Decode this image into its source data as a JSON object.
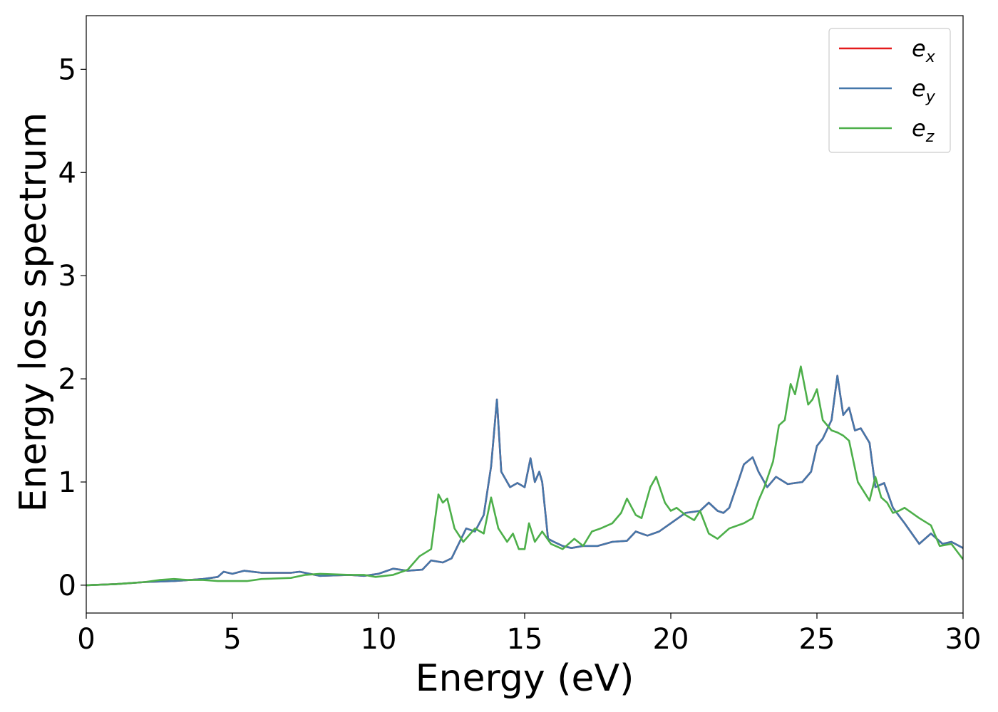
{
  "chart_data": {
    "type": "line",
    "title": "",
    "xlabel": "Energy (eV)",
    "ylabel": "Energy loss spectrum",
    "xlim": [
      0,
      30
    ],
    "ylim": [
      -0.27,
      5.52
    ],
    "xticks": [
      0,
      5,
      10,
      15,
      20,
      25,
      30
    ],
    "yticks": [
      0,
      1,
      2,
      3,
      4,
      5
    ],
    "grid": false,
    "legend_position": "top-right",
    "series": [
      {
        "name": "e",
        "subscript": "x",
        "color": "#e41a1c",
        "x": [
          0,
          1,
          2,
          3,
          4,
          4.5,
          4.7,
          5,
          5.4,
          6,
          7,
          7.3,
          8,
          9,
          9.5,
          10,
          10.5,
          11,
          11.5,
          11.8,
          12.2,
          12.5,
          13,
          13.3,
          13.6,
          13.85,
          14.05,
          14.2,
          14.5,
          14.75,
          15,
          15.2,
          15.35,
          15.5,
          15.6,
          15.8,
          16,
          16.3,
          16.6,
          17,
          17.5,
          18,
          18.5,
          18.8,
          19.2,
          19.6,
          20,
          20.5,
          21,
          21.3,
          21.6,
          21.8,
          22,
          22.3,
          22.5,
          22.8,
          23,
          23.3,
          23.6,
          24,
          24.5,
          24.8,
          25,
          25.2,
          25.5,
          25.7,
          25.9,
          26.1,
          26.3,
          26.5,
          26.8,
          27,
          27.3,
          27.6,
          28,
          28.5,
          28.9,
          29.3,
          29.6,
          30
        ],
        "y": [
          0,
          0.01,
          0.03,
          0.04,
          0.06,
          0.08,
          0.13,
          0.11,
          0.14,
          0.12,
          0.12,
          0.13,
          0.09,
          0.1,
          0.09,
          0.11,
          0.16,
          0.14,
          0.15,
          0.24,
          0.22,
          0.26,
          0.55,
          0.52,
          0.68,
          1.15,
          1.8,
          1.1,
          0.95,
          0.99,
          0.95,
          1.23,
          1.0,
          1.1,
          1.0,
          0.45,
          0.42,
          0.38,
          0.36,
          0.38,
          0.38,
          0.42,
          0.43,
          0.52,
          0.48,
          0.52,
          0.6,
          0.7,
          0.72,
          0.8,
          0.72,
          0.7,
          0.75,
          1.0,
          1.17,
          1.24,
          1.1,
          0.95,
          1.05,
          0.98,
          1.0,
          1.1,
          1.35,
          1.42,
          1.6,
          2.03,
          1.65,
          1.72,
          1.5,
          1.52,
          1.38,
          0.95,
          0.99,
          0.75,
          0.6,
          0.4,
          0.5,
          0.4,
          0.42,
          0.36
        ]
      },
      {
        "name": "e",
        "subscript": "y",
        "color": "#4477aa",
        "x": [
          0,
          1,
          2,
          3,
          4,
          4.5,
          4.7,
          5,
          5.4,
          6,
          7,
          7.3,
          8,
          9,
          9.5,
          10,
          10.5,
          11,
          11.5,
          11.8,
          12.2,
          12.5,
          13,
          13.3,
          13.6,
          13.85,
          14.05,
          14.2,
          14.5,
          14.75,
          15,
          15.2,
          15.35,
          15.5,
          15.6,
          15.8,
          16,
          16.3,
          16.6,
          17,
          17.5,
          18,
          18.5,
          18.8,
          19.2,
          19.6,
          20,
          20.5,
          21,
          21.3,
          21.6,
          21.8,
          22,
          22.3,
          22.5,
          22.8,
          23,
          23.3,
          23.6,
          24,
          24.5,
          24.8,
          25,
          25.2,
          25.5,
          25.7,
          25.9,
          26.1,
          26.3,
          26.5,
          26.8,
          27,
          27.3,
          27.6,
          28,
          28.5,
          28.9,
          29.3,
          29.6,
          30
        ],
        "y": [
          0,
          0.01,
          0.03,
          0.04,
          0.06,
          0.08,
          0.13,
          0.11,
          0.14,
          0.12,
          0.12,
          0.13,
          0.09,
          0.1,
          0.09,
          0.11,
          0.16,
          0.14,
          0.15,
          0.24,
          0.22,
          0.26,
          0.55,
          0.52,
          0.68,
          1.15,
          1.8,
          1.1,
          0.95,
          0.99,
          0.95,
          1.23,
          1.0,
          1.1,
          1.0,
          0.45,
          0.42,
          0.38,
          0.36,
          0.38,
          0.38,
          0.42,
          0.43,
          0.52,
          0.48,
          0.52,
          0.6,
          0.7,
          0.72,
          0.8,
          0.72,
          0.7,
          0.75,
          1.0,
          1.17,
          1.24,
          1.1,
          0.95,
          1.05,
          0.98,
          1.0,
          1.1,
          1.35,
          1.42,
          1.6,
          2.03,
          1.65,
          1.72,
          1.5,
          1.52,
          1.38,
          0.95,
          0.99,
          0.75,
          0.6,
          0.4,
          0.5,
          0.4,
          0.42,
          0.36
        ]
      },
      {
        "name": "e",
        "subscript": "z",
        "color": "#4daf4a",
        "x": [
          0,
          1,
          2,
          2.5,
          3,
          3.5,
          4,
          4.5,
          5,
          5.5,
          6,
          7,
          7.5,
          8,
          9,
          9.5,
          9.9,
          10.5,
          11,
          11.4,
          11.8,
          12.05,
          12.2,
          12.35,
          12.6,
          12.9,
          13.3,
          13.6,
          13.85,
          14.1,
          14.4,
          14.6,
          14.8,
          15.0,
          15.15,
          15.35,
          15.6,
          15.9,
          16.3,
          16.7,
          17,
          17.3,
          17.6,
          18,
          18.3,
          18.5,
          18.8,
          19.0,
          19.3,
          19.5,
          19.8,
          20.0,
          20.2,
          20.5,
          20.8,
          21.0,
          21.3,
          21.6,
          22,
          22.5,
          22.8,
          23.0,
          23.2,
          23.5,
          23.7,
          23.9,
          24.1,
          24.25,
          24.45,
          24.7,
          24.85,
          25.0,
          25.2,
          25.5,
          25.7,
          25.9,
          26.1,
          26.4,
          26.8,
          27.0,
          27.2,
          27.4,
          27.6,
          27.8,
          28,
          28.5,
          28.9,
          29.2,
          29.6,
          30
        ],
        "y": [
          0,
          0.01,
          0.03,
          0.05,
          0.06,
          0.05,
          0.05,
          0.04,
          0.04,
          0.04,
          0.06,
          0.07,
          0.1,
          0.11,
          0.1,
          0.1,
          0.08,
          0.1,
          0.15,
          0.28,
          0.35,
          0.88,
          0.8,
          0.84,
          0.55,
          0.42,
          0.55,
          0.5,
          0.85,
          0.55,
          0.42,
          0.5,
          0.35,
          0.35,
          0.6,
          0.42,
          0.52,
          0.4,
          0.35,
          0.45,
          0.38,
          0.52,
          0.55,
          0.6,
          0.7,
          0.84,
          0.68,
          0.65,
          0.95,
          1.05,
          0.8,
          0.72,
          0.75,
          0.68,
          0.63,
          0.72,
          0.5,
          0.45,
          0.55,
          0.6,
          0.65,
          0.82,
          0.95,
          1.2,
          1.55,
          1.6,
          1.95,
          1.85,
          2.12,
          1.75,
          1.8,
          1.9,
          1.6,
          1.5,
          1.48,
          1.45,
          1.4,
          1.0,
          0.82,
          1.05,
          0.85,
          0.8,
          0.7,
          0.72,
          0.75,
          0.65,
          0.58,
          0.38,
          0.4,
          0.25
        ]
      }
    ]
  }
}
